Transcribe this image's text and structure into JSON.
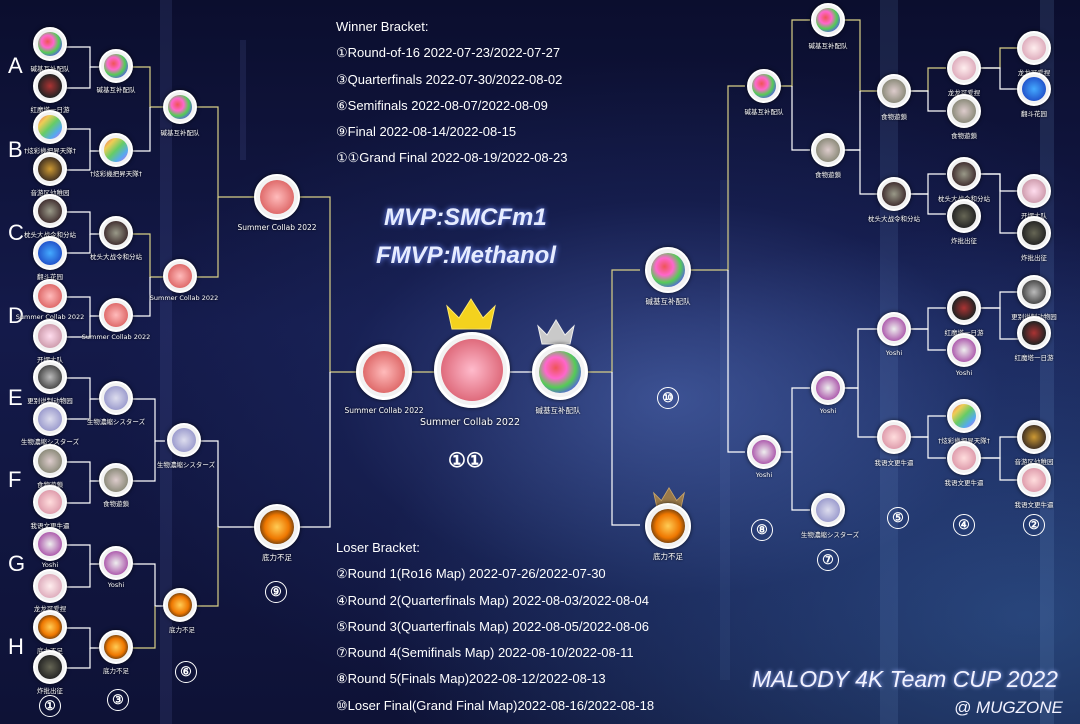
{
  "groups": [
    "A",
    "B",
    "C",
    "D",
    "E",
    "F",
    "G",
    "H"
  ],
  "winner_schedule": {
    "heading": "Winner Bracket:",
    "rows": [
      "①Round-of-16  2022-07-23/2022-07-27",
      "③Quarterfinals  2022-07-30/2022-08-02",
      "⑥Semifinals 2022-08-07/2022-08-09",
      "⑨Final  2022-08-14/2022-08-15",
      "①①Grand Final    2022-08-19/2022-08-23"
    ]
  },
  "loser_schedule": {
    "heading": "Loser Bracket:",
    "rows": [
      "②Round 1(Ro16 Map)  2022-07-26/2022-07-30",
      "④Round 2(Quarterfinals Map)  2022-08-03/2022-08-04",
      "⑤Round 3(Quarterfinals Map)  2022-08-05/2022-08-06",
      "⑦Round 4(Semifinals Map) 2022-08-10/2022-08-11",
      "⑧Round 5(Finals Map)2022-08-12/2022-08-13",
      "⑩Loser Final(Grand Final Map)2022-08-16/2022-08-18"
    ]
  },
  "mvp": "MVP:SMCFm1",
  "fmvp": "FMVP:Methanol",
  "title": "MALODY 4K Team CUP 2022",
  "credit": "@ MUGZONE",
  "round_markers": {
    "r1": "①",
    "r3": "③",
    "r6": "⑥",
    "r9": "⑨",
    "r11": "①①",
    "r10": "⑩",
    "r8": "⑧",
    "r7": "⑦",
    "r5": "⑤",
    "r4": "④",
    "r2": "②"
  },
  "teams": {
    "t1": "碱基互补配队",
    "t2": "红魔塔一日游",
    "t3": "†炫彩幾把昇天隊†",
    "t4": "音游区幼稚园",
    "t5": "枕头大战令和分站",
    "t6": "翻斗花园",
    "t7": "Summer Collab 2022",
    "t8": "开摆大队",
    "t9": "更别说制动物园",
    "t10": "生物濃縮シスターズ",
    "t11": "食物遊鎖",
    "t12": "我语文更牛逼",
    "t13": "Yoshi",
    "t14": "龙龙可爱捏",
    "t15": "底力不足",
    "t16": "炸批出征"
  },
  "colors": {
    "line": "#d8cf86",
    "node_border": "#ffffff",
    "crown_gold": "#f4d21e",
    "crown_silver": "#c9c9c9",
    "crown_bronze": "#9a7a4a"
  }
}
